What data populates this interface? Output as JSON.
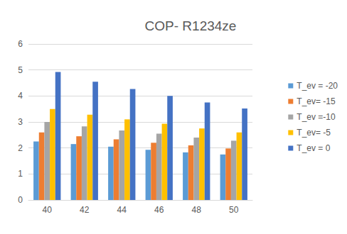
{
  "chart_data": {
    "type": "bar",
    "title": "COP- R1234ze",
    "categories": [
      "40",
      "42",
      "44",
      "46",
      "48",
      "50"
    ],
    "series": [
      {
        "name": "T_ev = -20",
        "color": "#5b9bd5",
        "values": [
          2.25,
          2.15,
          2.05,
          1.93,
          1.83,
          1.75
        ]
      },
      {
        "name": "T_ev= -15",
        "color": "#ed7d31",
        "values": [
          2.6,
          2.45,
          2.33,
          2.2,
          2.1,
          1.98
        ]
      },
      {
        "name": "T_ev =-10",
        "color": "#a5a5a5",
        "values": [
          3.0,
          2.83,
          2.67,
          2.55,
          2.4,
          2.28
        ]
      },
      {
        "name": "T_ev= -5",
        "color": "#ffc000",
        "values": [
          3.5,
          3.28,
          3.1,
          2.93,
          2.75,
          2.6
        ]
      },
      {
        "name": "T_ev = 0",
        "color": "#4472c4",
        "values": [
          4.92,
          4.55,
          4.27,
          4.0,
          3.75,
          3.52
        ]
      }
    ],
    "ylim": [
      0,
      6
    ],
    "yticks": [
      0,
      1,
      2,
      3,
      4,
      5,
      6
    ],
    "grid": true,
    "legend": "right"
  }
}
